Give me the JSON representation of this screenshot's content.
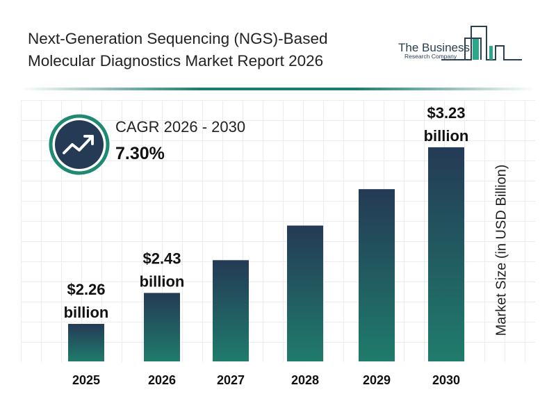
{
  "title_lines": [
    "Next-Generation Sequencing (NGS)-Based",
    "Molecular Diagnostics Market Report 2026"
  ],
  "logo": {
    "line1": "The Business",
    "line2": "Research Company"
  },
  "cagr": {
    "label": "CAGR 2026 - 2030",
    "value": "7.30%",
    "icon": "trending-up-icon"
  },
  "colors": {
    "bar_top": "#243a55",
    "bar_bottom": "#1f7c6c",
    "accent": "#1e7a6e"
  },
  "chart_data": {
    "type": "bar",
    "categories": [
      "2025",
      "2026",
      "2027",
      "2028",
      "2029",
      "2030"
    ],
    "values": [
      2.26,
      2.43,
      2.61,
      2.8,
      3.0,
      3.23
    ],
    "data_labels": [
      {
        "index": 0,
        "lines": [
          "$2.26",
          "billion"
        ]
      },
      {
        "index": 1,
        "lines": [
          "$2.43",
          "billion"
        ]
      },
      {
        "index": 5,
        "lines": [
          "$3.23",
          "billion"
        ]
      }
    ],
    "ylabel": "Market Size (in USD Billion)",
    "xlabel": "",
    "grid": true
  }
}
